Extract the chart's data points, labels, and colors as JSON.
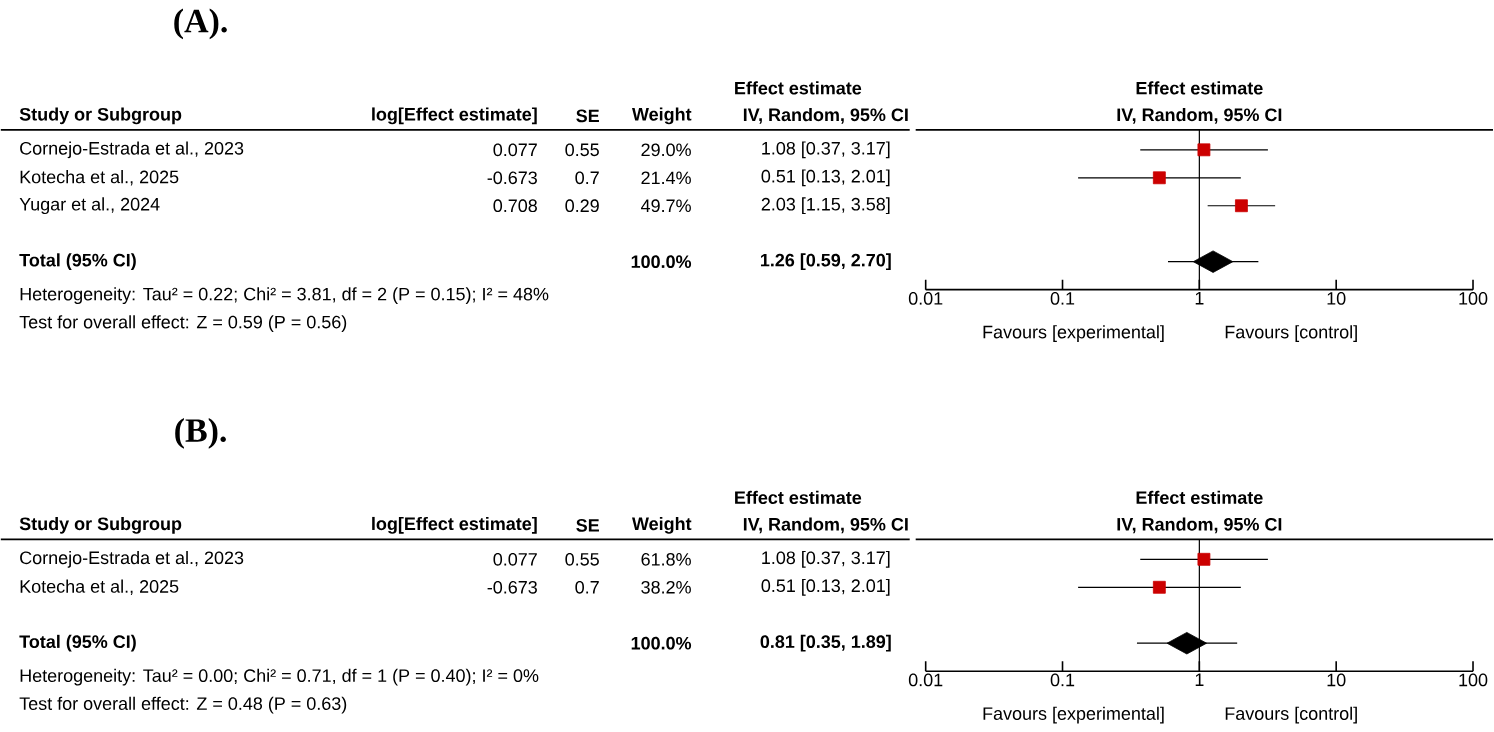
{
  "chart_data": [
    {
      "type": "other",
      "title": "(A).",
      "subtitle": "Effect estimate",
      "categories": [
        "Study or Subgroup",
        "log[Effect estimate]",
        "SE",
        "Weight",
        "IV, Random, 95% CI"
      ],
      "y_categories": [
        "Cornejo-Estrada et al., 2023",
        "Kotecha et al., 2025",
        "Yugar et al., 2024",
        "Total (95% CI)"
      ],
      "cell_labels": [
        [
          "0.077",
          "0.55",
          "29.0%",
          "1.08 [0.37, 3.17]"
        ],
        [
          "-0.673",
          "0.7",
          "21.4%",
          "0.51 [0.13, 2.01]"
        ],
        [
          "0.708",
          "0.29",
          "49.7%",
          "2.03 [1.15, 3.58]"
        ],
        [
          null,
          null,
          "100.0%",
          "1.26 [0.59, 2.70]"
        ]
      ],
      "annotations": [
        "Heterogeneity: Tau² = 0.22; Chi² = 3.81, df = 2 (P = 0.15); I² = 48%",
        "Test for overall effect: Z = 0.59 (P = 0.56)"
      ]
    },
    {
      "type": "scatter",
      "orientation": "horizontal",
      "title": "Effect estimate",
      "subtitle": "IV, Random, 95% CI",
      "categories": [
        null,
        null,
        null,
        null,
        null
      ],
      "log": "x",
      "xlim": [
        0.01,
        100
      ],
      "xticks": [
        0.01,
        0.1,
        1,
        10,
        100
      ],
      "series": [
        {
          "color": "#cc0000",
          "marker": "square",
          "values": [
            1.08,
            0.51,
            2.03,
            null,
            null
          ],
          "errors": [
            [
              0.37,
              3.17
            ],
            [
              0.13,
              2.01
            ],
            [
              1.15,
              3.58
            ],
            null,
            null
          ]
        },
        {
          "color": "#000000",
          "marker": "diamond",
          "values": [
            null,
            null,
            null,
            null,
            1.26
          ],
          "errors": [
            null,
            null,
            null,
            null,
            [
              0.59,
              2.7
            ]
          ]
        }
      ],
      "ref_lines": [
        {
          "axis": "x",
          "value": 1
        }
      ],
      "annotations": [
        "Favours [experimental]",
        "Favours [control]"
      ]
    },
    {
      "type": "other",
      "title": "(B).",
      "subtitle": "Effect estimate",
      "categories": [
        "Study or Subgroup",
        "log[Effect estimate]",
        "SE",
        "Weight",
        "IV, Random, 95% CI"
      ],
      "y_categories": [
        "Cornejo-Estrada et al., 2023",
        "Kotecha et al., 2025",
        "Total (95% CI)"
      ],
      "cell_labels": [
        [
          "0.077",
          "0.55",
          "61.8%",
          "1.08 [0.37, 3.17]"
        ],
        [
          "-0.673",
          "0.7",
          "38.2%",
          "0.51 [0.13, 2.01]"
        ],
        [
          null,
          null,
          "100.0%",
          "0.81 [0.35, 1.89]"
        ]
      ],
      "annotations": [
        "Heterogeneity: Tau² = 0.00; Chi² = 0.71, df = 1 (P = 0.40); I² = 0%",
        "Test for overall effect: Z = 0.48 (P = 0.63)"
      ]
    },
    {
      "type": "scatter",
      "orientation": "horizontal",
      "title": "Effect estimate",
      "subtitle": "IV, Random, 95% CI",
      "categories": [
        null,
        null,
        null,
        null
      ],
      "log": "x",
      "xlim": [
        0.01,
        100
      ],
      "xticks": [
        0.01,
        0.1,
        1,
        10,
        100
      ],
      "series": [
        {
          "color": "#cc0000",
          "marker": "square",
          "values": [
            1.08,
            0.51,
            null,
            null
          ],
          "errors": [
            [
              0.37,
              3.17
            ],
            [
              0.13,
              2.01
            ],
            null,
            null
          ]
        },
        {
          "color": "#000000",
          "marker": "diamond",
          "values": [
            null,
            null,
            null,
            0.81
          ],
          "errors": [
            null,
            null,
            null,
            [
              0.35,
              1.89
            ]
          ]
        }
      ],
      "ref_lines": [
        {
          "axis": "x",
          "value": 1
        }
      ],
      "annotations": [
        "Favours [experimental]",
        "Favours [control]"
      ]
    }
  ]
}
